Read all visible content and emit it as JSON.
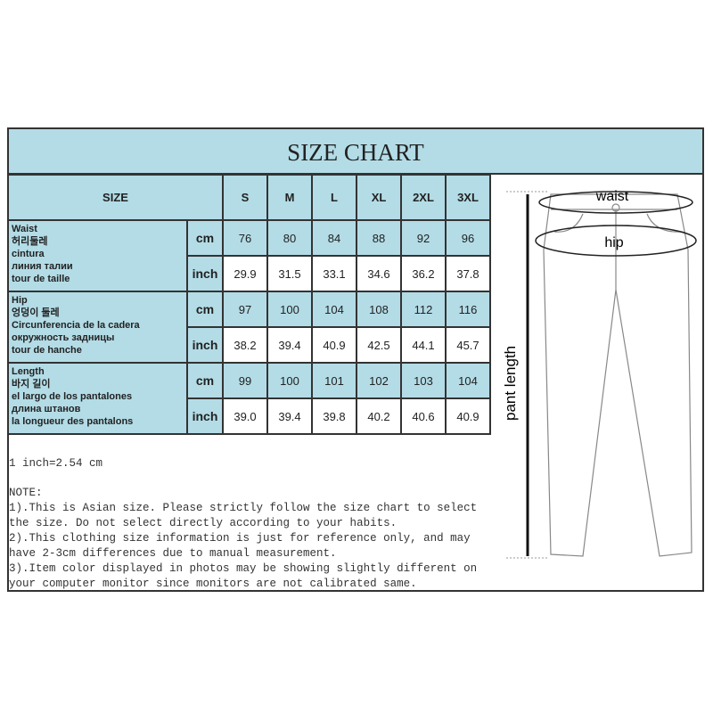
{
  "title": "SIZE CHART",
  "table": {
    "size_header": "SIZE",
    "sizes": [
      "S",
      "M",
      "L",
      "XL",
      "2XL",
      "3XL"
    ],
    "rows": [
      {
        "labels": [
          "Waist",
          "허리둘레",
          "cintura",
          "линия талии",
          "tour de taille"
        ],
        "cm_label": "cm",
        "cm": [
          "76",
          "80",
          "84",
          "88",
          "92",
          "96"
        ],
        "inch_label": "inch",
        "inch": [
          "29.9",
          "31.5",
          "33.1",
          "34.6",
          "36.2",
          "37.8"
        ]
      },
      {
        "labels": [
          "Hip",
          "엉덩이 둘레",
          "Circunferencia de la cadera",
          "окружность задницы",
          "tour de hanche"
        ],
        "cm_label": "cm",
        "cm": [
          "97",
          "100",
          "104",
          "108",
          "112",
          "116"
        ],
        "inch_label": "inch",
        "inch": [
          "38.2",
          "39.4",
          "40.9",
          "42.5",
          "44.1",
          "45.7"
        ]
      },
      {
        "labels": [
          "Length",
          "바지 길이",
          "el largo de los pantalones",
          "длина штанов",
          "la longueur des pantalons"
        ],
        "cm_label": "cm",
        "cm": [
          "99",
          "100",
          "101",
          "102",
          "103",
          "104"
        ],
        "inch_label": "inch",
        "inch": [
          "39.0",
          "39.4",
          "39.8",
          "40.2",
          "40.6",
          "40.9"
        ]
      }
    ]
  },
  "conversion": "1 inch=2.54 cm",
  "notes": {
    "heading": "NOTE:",
    "lines": [
      "1).This is Asian size. Please strictly follow the size chart to select",
      "the size. Do not select directly according to your habits.",
      "2).This clothing size information is just for reference only, and may",
      "have 2-3cm differences due to manual measurement.",
      "3).Item color displayed in photos may be showing slightly different on",
      "your computer monitor since monitors are not calibrated same."
    ]
  },
  "diagram": {
    "waist": "waist",
    "hip": "hip",
    "length": "pant length"
  },
  "colors": {
    "header_blue": "#b3dce6",
    "border": "#333333"
  }
}
